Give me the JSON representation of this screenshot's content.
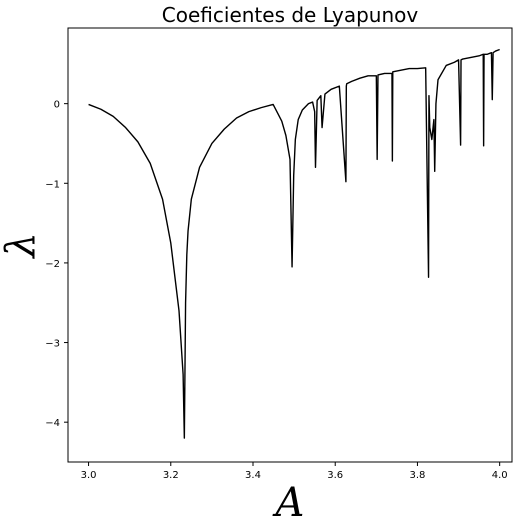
{
  "chart_data": {
    "type": "line",
    "title": "Coeficientes de Lyapunov",
    "xlabel": "A",
    "ylabel": "λ",
    "xlim": [
      2.95,
      4.03
    ],
    "ylim": [
      -4.5,
      0.95
    ],
    "xticks": [
      3.0,
      3.2,
      3.4,
      3.6,
      3.8,
      4.0
    ],
    "xtick_labels": [
      "3.0",
      "3.2",
      "3.4",
      "3.6",
      "3.8",
      "4.0"
    ],
    "yticks": [
      0,
      -1,
      -2,
      -3,
      -4
    ],
    "ytick_labels": [
      "0",
      "−1",
      "−2",
      "−3",
      "−4"
    ],
    "grid": false,
    "line_color": "#000000",
    "series": [
      {
        "x": [
          3.0,
          3.03,
          3.06,
          3.09,
          3.12,
          3.15,
          3.18,
          3.2,
          3.22,
          3.23,
          3.233,
          3.236,
          3.239,
          3.242,
          3.25,
          3.27,
          3.3,
          3.33,
          3.36,
          3.39,
          3.42,
          3.449,
          3.46,
          3.47,
          3.48,
          3.49,
          3.495,
          3.499,
          3.503,
          3.51,
          3.52,
          3.535,
          3.545,
          3.55,
          3.552,
          3.556,
          3.565,
          3.568,
          3.575,
          3.59,
          3.61,
          3.626,
          3.627,
          3.628,
          3.64,
          3.66,
          3.68,
          3.7,
          3.702,
          3.704,
          3.72,
          3.738,
          3.739,
          3.74,
          3.76,
          3.78,
          3.8,
          3.82,
          3.827,
          3.828,
          3.83,
          3.835,
          3.84,
          3.842,
          3.845,
          3.85,
          3.87,
          3.89,
          3.9,
          3.905,
          3.906,
          3.91,
          3.93,
          3.95,
          3.96,
          3.961,
          3.962,
          3.97,
          3.98,
          3.982,
          3.984,
          3.99,
          4.0
        ],
        "y": [
          -0.01,
          -0.07,
          -0.16,
          -0.3,
          -0.48,
          -0.75,
          -1.2,
          -1.75,
          -2.6,
          -3.4,
          -4.2,
          -2.5,
          -1.9,
          -1.6,
          -1.2,
          -0.8,
          -0.5,
          -0.32,
          -0.18,
          -0.1,
          -0.05,
          -0.01,
          -0.12,
          -0.22,
          -0.4,
          -0.7,
          -2.05,
          -0.9,
          -0.45,
          -0.2,
          -0.08,
          0.0,
          0.02,
          -0.1,
          -0.8,
          0.04,
          0.1,
          -0.3,
          0.12,
          0.18,
          0.22,
          -0.98,
          0.22,
          0.25,
          0.28,
          0.32,
          0.35,
          0.35,
          -0.7,
          0.36,
          0.38,
          0.38,
          -0.72,
          0.4,
          0.42,
          0.44,
          0.44,
          0.45,
          -2.18,
          0.1,
          -0.3,
          -0.45,
          -0.2,
          -0.85,
          0.0,
          0.3,
          0.48,
          0.52,
          0.55,
          -0.52,
          0.55,
          0.56,
          0.58,
          0.6,
          0.62,
          -0.53,
          0.62,
          0.62,
          0.64,
          0.05,
          0.64,
          0.66,
          0.68
        ]
      }
    ]
  }
}
